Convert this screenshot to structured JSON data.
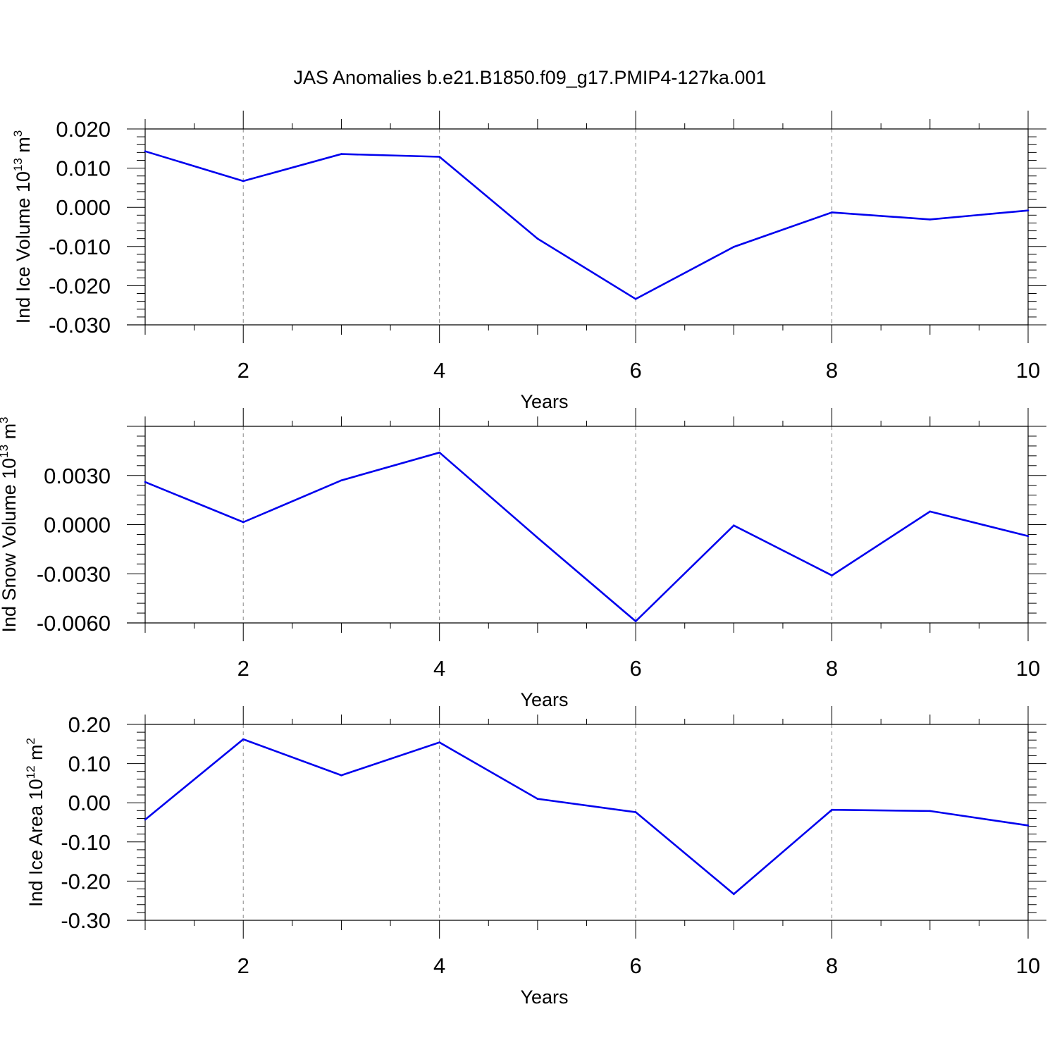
{
  "title": "JAS Anomalies b.e21.B1850.f09_g17.PMIP4-127ka.001",
  "line_color": "#0000ee",
  "chart_data": [
    {
      "type": "line",
      "title": "JAS Anomalies b.e21.B1850.f09_g17.PMIP4-127ka.001",
      "ylabel": {
        "base": "Ind Ice Volume 10",
        "exp": "13",
        "unit": " m",
        "unit_exp": "3"
      },
      "xlabel": "Years",
      "xlim": [
        1,
        10
      ],
      "ylim": [
        -0.03,
        0.02
      ],
      "x_ticks": [
        2,
        4,
        6,
        8,
        10
      ],
      "y_ticks": [
        -0.03,
        -0.02,
        -0.01,
        0.0,
        0.01,
        0.02
      ],
      "y_tick_labels": [
        "-0.030",
        "-0.020",
        "-0.010",
        "0.000",
        "0.010",
        "0.020"
      ],
      "grid": "vertical dashed at major x ticks",
      "series": [
        {
          "name": "Ind Ice Volume",
          "x": [
            1,
            2,
            3,
            4,
            5,
            6,
            7,
            8,
            9,
            10
          ],
          "values": [
            0.0143,
            0.0067,
            0.0136,
            0.0129,
            -0.008,
            -0.0234,
            -0.0101,
            -0.0013,
            -0.0031,
            -0.0008
          ]
        }
      ]
    },
    {
      "type": "line",
      "ylabel": {
        "base": "Ind Snow Volume 10",
        "exp": "13",
        "unit": " m",
        "unit_exp": "3"
      },
      "xlabel": "Years",
      "xlim": [
        1,
        10
      ],
      "ylim": [
        -0.006,
        0.006
      ],
      "x_ticks": [
        2,
        4,
        6,
        8,
        10
      ],
      "y_ticks": [
        -0.006,
        -0.003,
        0.0,
        0.003
      ],
      "y_tick_labels": [
        "-0.0060",
        "-0.0030",
        "0.0000",
        "0.0030"
      ],
      "grid": "vertical dashed at major x ticks",
      "series": [
        {
          "name": "Ind Snow Volume",
          "x": [
            1,
            2,
            3,
            4,
            5,
            6,
            7,
            8,
            9,
            10
          ],
          "values": [
            0.0026,
            0.00015,
            0.0027,
            0.0044,
            -0.0008,
            -0.0059,
            -5e-05,
            -0.0031,
            0.0008,
            -0.0007
          ]
        }
      ]
    },
    {
      "type": "line",
      "ylabel": {
        "base": "Ind Ice Area 10",
        "exp": "12",
        "unit": " m",
        "unit_exp": "2"
      },
      "xlabel": "Years",
      "xlim": [
        1,
        10
      ],
      "ylim": [
        -0.3,
        0.2
      ],
      "x_ticks": [
        2,
        4,
        6,
        8,
        10
      ],
      "y_ticks": [
        -0.3,
        -0.2,
        -0.1,
        0.0,
        0.1,
        0.2
      ],
      "y_tick_labels": [
        "-0.30",
        "-0.20",
        "-0.10",
        "0.00",
        "0.10",
        "0.20"
      ],
      "grid": "vertical dashed at major x ticks",
      "series": [
        {
          "name": "Ind Ice Area",
          "x": [
            1,
            2,
            3,
            4,
            5,
            6,
            7,
            8,
            9,
            10
          ],
          "values": [
            -0.043,
            0.162,
            0.07,
            0.154,
            0.01,
            -0.024,
            -0.233,
            -0.018,
            -0.021,
            -0.058
          ]
        }
      ]
    }
  ]
}
